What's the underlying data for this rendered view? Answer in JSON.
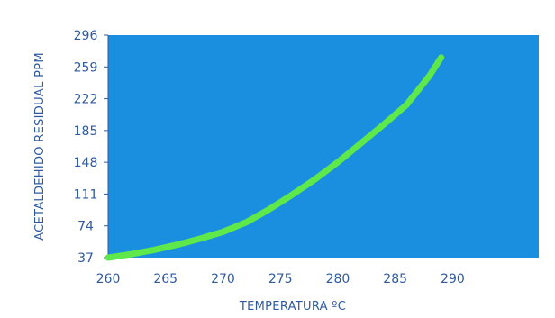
{
  "chart_data": {
    "type": "line",
    "xlabel": "TEMPERATURA ºC",
    "ylabel": "ACETALDEHIDO RESIDUAL PPM",
    "xlim": [
      260,
      297.5
    ],
    "ylim": [
      37,
      296
    ],
    "x_ticks": [
      "260",
      "265",
      "270",
      "275",
      "280",
      "285",
      "290"
    ],
    "x_tick_values": [
      260,
      265,
      270,
      275,
      280,
      285,
      290
    ],
    "y_ticks": [
      "37",
      "74",
      "111",
      "148",
      "185",
      "222",
      "259",
      "296"
    ],
    "y_tick_values": [
      37,
      74,
      111,
      148,
      185,
      222,
      259,
      296
    ],
    "grid": false,
    "background_color": "#1a8fe0",
    "line_color": "#5ee84a",
    "series": [
      {
        "x": [
          260,
          262,
          264,
          266,
          268,
          270,
          272,
          274,
          276,
          278,
          280,
          282,
          284,
          286,
          288,
          289
        ],
        "y": [
          37,
          41,
          46,
          52,
          59,
          67,
          78,
          93,
          110,
          128,
          148,
          170,
          192,
          215,
          249,
          270
        ]
      }
    ]
  }
}
